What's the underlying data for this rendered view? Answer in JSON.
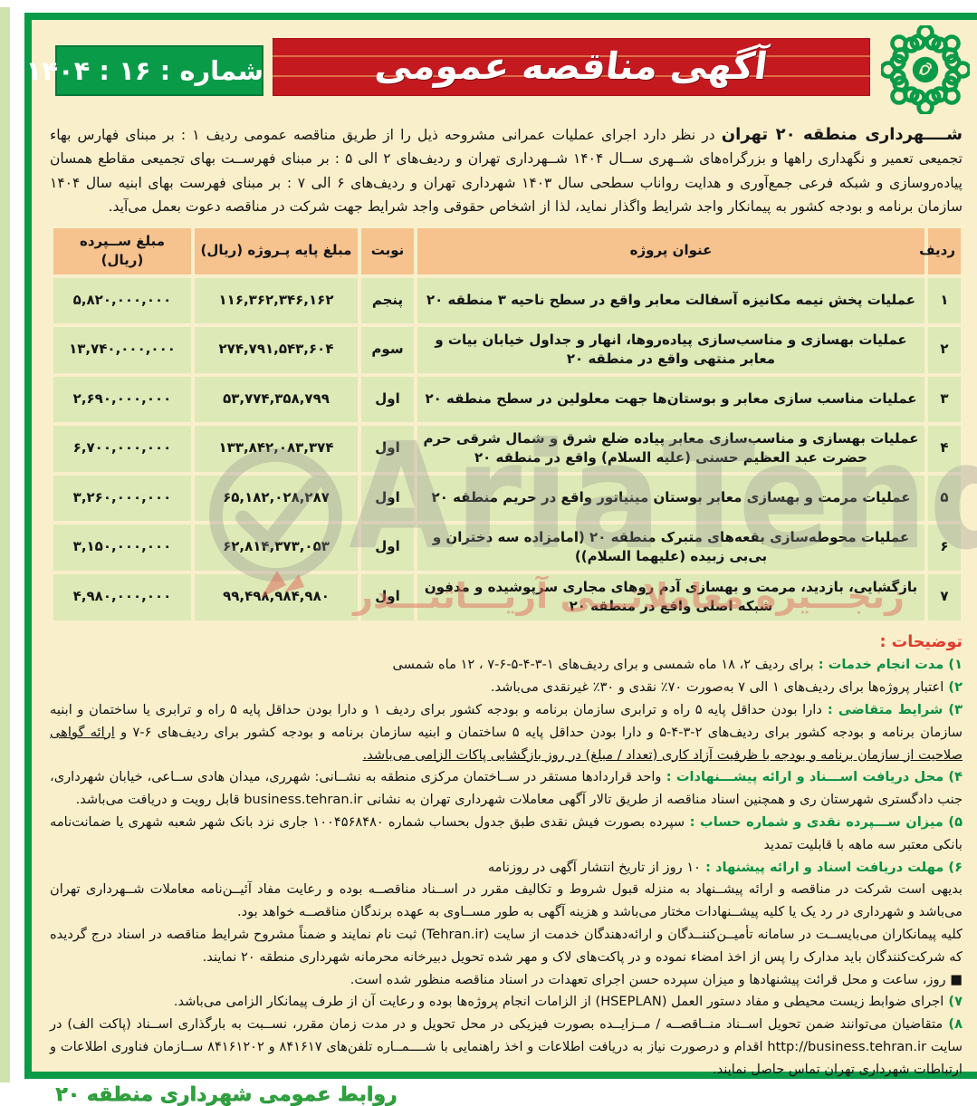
{
  "header": {
    "title": "آگهی مناقصه عمومی",
    "number_label": "شماره : ۱۶ : ۱۴۰۴",
    "logo": "tehran-municipality-logo"
  },
  "intro": {
    "lead": "شــــهرداری منطقه ۲۰ تهران",
    "rest": " در نظر دارد اجرای عملیات عمرانی مشروحه ذیل را از طریق مناقصه عمومی ردیف ۱ : بر مبنای فهارس بهاء تجمیعی تعمیر و نگهداری راهها و بزرگراه‌های شــهری ســال ۱۴۰۴ شــهرداری تهران و ردیف‌های ۲ الی ۵ : بر مبنای فهرســت بهای تجمیعی مقاطع همسان پیاده‌روسازی و شبکه فرعی جمع‌آوری و هدایت رواناب سطحی سال ۱۴۰۳ شهرداری تهران و ردیف‌های ۶ الی ۷ : بر مبنای فهرست بهای ابنیه سال ۱۴۰۴ سازمان برنامه و بودجه کشور به پیمانکار واجد شرایط واگذار نماید، لذا از اشخاص حقوقی واجد شرایط جهت شرکت در مناقصه دعوت بعمل می‌آید."
  },
  "table": {
    "headers": [
      "ردیف",
      "عنوان پروژه",
      "نوبت",
      "مبلغ پایه پـروژه (ریال)",
      "مبلغ ســپرده (ریال)"
    ],
    "rows": [
      {
        "row": "۱",
        "title": "عملیات پخش نیمه مکانیزه آسفالت معابر واقع در سطح ناحیه ۳ منطقه ۲۰",
        "turn": "پنجم",
        "base": "۱۱۶,۳۶۲,۳۴۶,۱۶۲",
        "deposit": "۵,۸۲۰,۰۰۰,۰۰۰"
      },
      {
        "row": "۲",
        "title": "عملیات بهسازی و مناسب‌سازی پیاده‌روها، انهار و جداول خیابان بیات و معابر منتهی واقع در منطقه ۲۰",
        "turn": "سوم",
        "base": "۲۷۴,۷۹۱,۵۴۳,۶۰۴",
        "deposit": "۱۳,۷۴۰,۰۰۰,۰۰۰"
      },
      {
        "row": "۳",
        "title": "عملیات مناسب سازی معابر و بوستان‌ها جهت معلولین در سطح منطقه ۲۰",
        "turn": "اول",
        "base": "۵۳,۷۷۴,۳۵۸,۷۹۹",
        "deposit": "۲,۶۹۰,۰۰۰,۰۰۰"
      },
      {
        "row": "۴",
        "title": "عملیات بهسازی و مناسب‌سازی معابر پیاده ضلع شرق و شمال شرقی حرم حضرت عبد العظیم حسنی (علیه السلام) واقع در منطقه ۲۰",
        "turn": "اول",
        "base": "۱۳۳,۸۴۲,۰۸۳,۳۷۴",
        "deposit": "۶,۷۰۰,۰۰۰,۰۰۰"
      },
      {
        "row": "۵",
        "title": "عملیات مرمت و بهسازی معابر بوستان مینیاتور واقع در حریم منطقه ۲۰",
        "turn": "اول",
        "base": "۶۵,۱۸۲,۰۲۸,۲۸۷",
        "deposit": "۳,۲۶۰,۰۰۰,۰۰۰"
      },
      {
        "row": "۶",
        "title": "عملیات محوطه‌سازی بقعه‌های متبرک منطقه ۲۰ (امامزاده سه دختران و بی‌بی زبیده (علیهما السلام))",
        "turn": "اول",
        "base": "۶۲,۸۱۴,۳۷۳,۰۵۳",
        "deposit": "۳,۱۵۰,۰۰۰,۰۰۰"
      },
      {
        "row": "۷",
        "title": "بازگشایی، بازدید، مرمت و بهسازی آدم روهای مجاری سرپوشیده و مدفون شبکه اصلی واقع در منطقه ۲۰",
        "turn": "اول",
        "base": "۹۹,۴۹۸,۹۸۴,۹۸۰",
        "deposit": "۴,۹۸۰,۰۰۰,۰۰۰"
      }
    ]
  },
  "notes": {
    "title": "توضیحات :",
    "items": [
      {
        "type": "note",
        "num": "۱)",
        "label": "مدت انجام خدمات :",
        "text": "برای ردیف ۲، ۱۸ ماه شمسی و برای ردیف‌های ۱-۳-۴-۵-۶-۷ ، ۱۲ ماه شمسی"
      },
      {
        "type": "note",
        "num": "۲)",
        "label": "",
        "text": "اعتبار پروژه‌ها برای ردیف‌های ۱ الی ۷ به‌صورت ۷۰٪ نقدی و ۳۰٪ غیرنقدی می‌باشد."
      },
      {
        "type": "note",
        "num": "۳)",
        "label": "شرایط متقاضی :",
        "text": "دارا بودن حداقل پایه ۵ راه و ترابری سازمان برنامه و بودجه کشور برای ردیف ۱ و دارا بودن حداقل پایه ۵ راه و ترابری یا ساختمان و ابنیه سازمان برنامه و بودجه کشور برای ردیف‌های ۲-۳-۴-۵ و دارا بودن حداقل پایه ۵ ساختمان و ابنیه سازمان برنامه و بودجه کشور برای ردیف‌های ۶-۷ و ",
        "underline": "ارائه گواهی صلاحیت از سازمان برنامه و بودجه با ظرفیت آزاد کاری (تعداد / مبلغ) در روز بازگشایی پاکات الزامی می‌باشد."
      },
      {
        "type": "note",
        "num": "۴)",
        "label": "محل دریافت اســـناد و ارائه پیشـــنهادات :",
        "text": "واحد قراردادها مستقر در ســاختمان مرکزی منطقه به نشــانی: شهرری، میدان هادی ســاعی، خیابان شهرداری، جنب دادگستری شهرستان ری و همچنین اسناد مناقصه از طریق تالار آگهی معاملات شهرداری تهران به نشانی business.tehran.ir قابل رویت و دریافت می‌باشد."
      },
      {
        "type": "note",
        "num": "۵)",
        "label": "میزان ســـپرده نقدی و شماره حساب :",
        "text": "سپرده بصورت فیش نقدی طبق جدول بحساب شماره ۱۰۰۴۵۶۸۴۸۰ جاری نزد بانک شهر شعبه شهری یا ضمانت‌نامه بانکی معتبر سه ماهه با قابلیت تمدید"
      },
      {
        "type": "note",
        "num": "۶)",
        "label": "مهلت دریافت اسناد و ارائه پیشنهاد :",
        "text": "۱۰ روز از تاریخ انتشار آگهی در روزنامه"
      },
      {
        "type": "para",
        "text": "بدیهی است شرکت در مناقصه و ارائه پیشــنهاد به منزله قبول شروط و تکالیف مقرر در اســناد مناقصــه بوده و رعایت مفاد آئیــن‌نامه معاملات شــهرداری تهران می‌باشد و شهرداری در رد یک یا کلیه پیشــنهادات مختار می‌باشد و هزینه آگهی به طور مســاوی به عهده برندگان مناقصــه خواهد بود."
      },
      {
        "type": "para",
        "text": "کلیه پیمانکاران می‌بایســت در سامانه تأمیــن‌کننــدگان و ارائه‌دهندگان خدمت از سایت (Tehran.ir) ثبت نام نمایند و ضمناً مشروح شرایط مناقصه در اسناد درج گردیده که شرکت‌کنندگان باید مدارک را پس از اخذ امضاء نموده و در پاکت‌های لاک و مهر شده تحویل دبیرخانه محرمانه شهرداری منطقه ۲۰ نمایند."
      },
      {
        "type": "para",
        "text": "■ روز، ساعت و محل قرائت پیشنهادها  و میزان سپرده حسن اجرای تعهدات در اسناد مناقصه منظور شده است."
      },
      {
        "type": "note",
        "num": "۷)",
        "label": "",
        "text": "اجرای ضوابط زیست محیطی و مفاد دستور العمل (HSEPLAN) از الزامات انجام پروژه‌ها بوده و رعایت آن از طرف پیمانکار الزامی می‌باشد."
      },
      {
        "type": "note",
        "num": "۸)",
        "label": "",
        "text": "متقاضیان می‌توانند ضمن تحویل اســناد منــاقصــه / مــزایــده بصورت فیزیکی در محل تحویل و در مدت زمان مقرر، نســبت به بارگذاری اســناد (پاکت الف) در سایت http://business.tehran.ir اقدام و درصورت نیاز به دریافت اطلاعات و اخذ راهنمایی با شــــمــاره تلفن‌های ۸۴۱۶۱۷ و ۸۴۱۶۱۲۰۲ ســازمان فناوری اطلاعات و ارتباطات شهرداری تهران تماس حاصل نمایند."
      }
    ]
  },
  "footer": {
    "text": "روابط عمومی شهرداری منطقه ۲۰"
  },
  "watermarks": {
    "latin": "AriaTender",
    "persian": "زنجـــیره  معاملاتـــی  آریـــاتنـــدر"
  },
  "colors": {
    "banner_red": "#c4191f",
    "brand_green": "#0a9b49",
    "header_cell": "#f6c28e",
    "data_cell": "#dde9b6",
    "paper_cream": "#f9efcb",
    "note_label_green": "#0b8f45",
    "notes_title_red": "#e23b2e",
    "footer_green": "#2fa23e"
  }
}
